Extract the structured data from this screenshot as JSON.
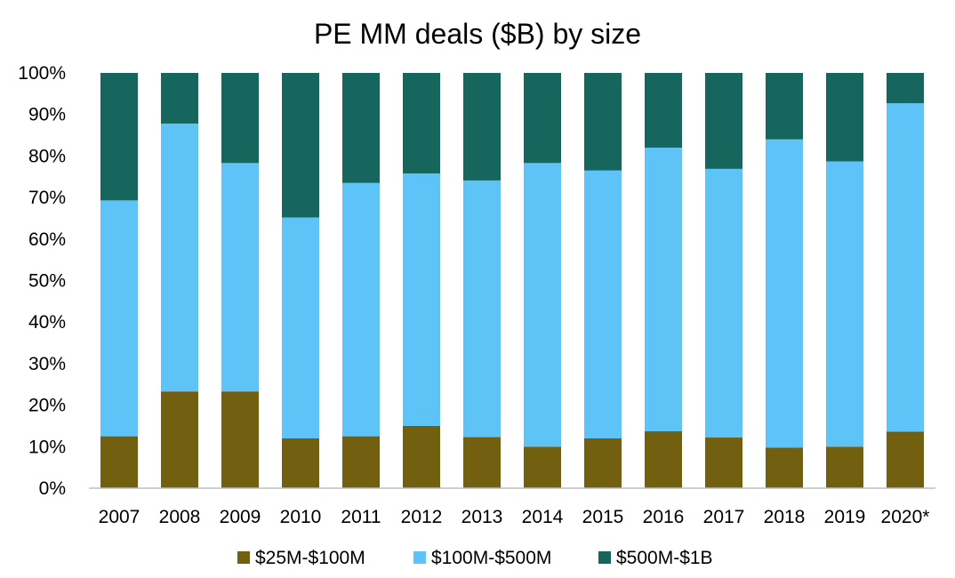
{
  "chart_data": {
    "type": "bar",
    "stacked": true,
    "percent": true,
    "title": "PE MM deals ($B) by size",
    "xlabel": "",
    "ylabel": "",
    "ylim": [
      0,
      100
    ],
    "yticks": [
      "0%",
      "10%",
      "20%",
      "30%",
      "40%",
      "50%",
      "60%",
      "70%",
      "80%",
      "90%",
      "100%"
    ],
    "categories": [
      "2007",
      "2008",
      "2009",
      "2010",
      "2011",
      "2012",
      "2013",
      "2014",
      "2015",
      "2016",
      "2017",
      "2018",
      "2019",
      "2020*"
    ],
    "series": [
      {
        "name": "$25M-$100M",
        "color": "#735f10",
        "values": [
          12.5,
          23.3,
          23.3,
          12.0,
          12.5,
          15.0,
          12.3,
          10.0,
          12.0,
          13.7,
          12.2,
          9.8,
          10.0,
          13.6
        ]
      },
      {
        "name": "$100M-$500M",
        "color": "#5ec3f7",
        "values": [
          56.8,
          64.5,
          55.0,
          53.2,
          61.0,
          60.8,
          61.8,
          68.3,
          64.5,
          68.3,
          64.7,
          74.2,
          68.7,
          79.1
        ]
      },
      {
        "name": "$500M-$1B",
        "color": "#17665d",
        "values": [
          30.7,
          12.2,
          21.7,
          34.8,
          26.5,
          24.2,
          25.9,
          21.7,
          23.5,
          18.0,
          23.1,
          16.0,
          21.3,
          7.3
        ]
      }
    ],
    "legend_position": "bottom",
    "grid": false
  }
}
